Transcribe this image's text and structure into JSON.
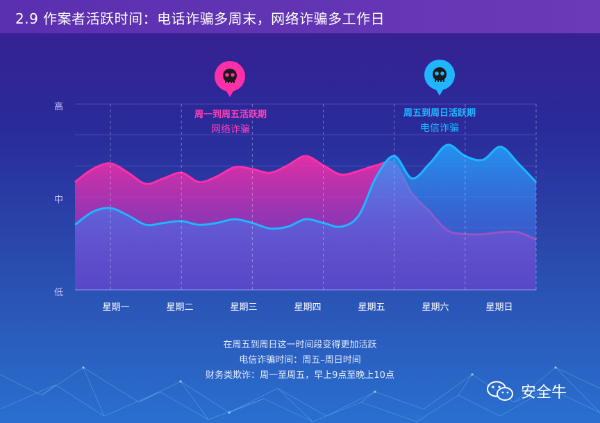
{
  "header": {
    "title": "2.9 作案者活跃时间：电话诈骗多周末，网络诈骗多工作日"
  },
  "callouts": [
    {
      "title": "周一到周五活跃期",
      "sub": "网络诈骗",
      "color": "#ff3fb4",
      "icon": "skull-icon"
    },
    {
      "title": "周五到周日活跃期",
      "sub": "电信诈骗",
      "color": "#1fb6ff",
      "icon": "skull-icon"
    }
  ],
  "notes": [
    "在周五到周日这一时间段变得更加活跃",
    "电信诈骗时间：周五–周日时间",
    "财务类欺诈：周一至周五，早上9点至晚上10点"
  ],
  "brand": {
    "name": "安全牛",
    "icon": "wechat-icon"
  },
  "chart_data": {
    "type": "area",
    "x": [
      0.0,
      0.25,
      0.5,
      0.75,
      1.0,
      1.25,
      1.5,
      1.75,
      2.0,
      2.25,
      2.5,
      2.75,
      3.0,
      3.25,
      3.5,
      3.75,
      4.0,
      4.25,
      4.5,
      4.75,
      5.0,
      5.25,
      5.5,
      5.75,
      6.0,
      6.25,
      6.5
    ],
    "categories": [
      "星期一",
      "星期二",
      "星期三",
      "星期四",
      "星期五",
      "星期六",
      "星期日"
    ],
    "y_ticks": [
      "低",
      "中",
      "高"
    ],
    "ylim": [
      0,
      100
    ],
    "series": [
      {
        "name": "网络诈骗",
        "color": "#ff2fa8",
        "values": [
          58,
          65,
          68,
          63,
          57,
          60,
          63,
          58,
          61,
          66,
          65,
          63,
          67,
          72,
          67,
          62,
          64,
          67,
          68,
          52,
          42,
          32,
          30,
          30,
          31,
          31,
          27
        ]
      },
      {
        "name": "电信诈骗",
        "color": "#1fb6ff",
        "values": [
          35,
          42,
          44,
          40,
          35,
          36,
          37,
          35,
          36,
          38,
          36,
          33,
          34,
          38,
          36,
          34,
          40,
          61,
          72,
          60,
          68,
          78,
          72,
          70,
          77,
          68,
          58
        ]
      }
    ]
  }
}
